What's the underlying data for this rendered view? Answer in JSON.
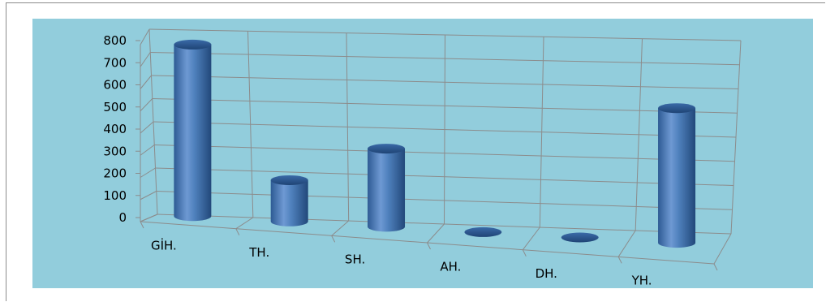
{
  "chart_data": {
    "type": "bar",
    "style": "3d-cylinder",
    "categories": [
      "GİH.",
      "TH.",
      "SH.",
      "AH.",
      "DH.",
      "YH."
    ],
    "values": [
      790,
      190,
      360,
      0,
      0,
      620
    ],
    "ylim": [
      0,
      800
    ],
    "yticks": [
      "800",
      "700",
      "600",
      "500",
      "400",
      "300",
      "200",
      "100",
      "0"
    ],
    "grid": true,
    "legend": "none",
    "colors": {
      "background": "#92cddc",
      "bar": "#4f81bd",
      "bar_dark": "#2e5b94",
      "bar_light": "#8fb4e3",
      "grid": "#8c8c8c"
    }
  }
}
